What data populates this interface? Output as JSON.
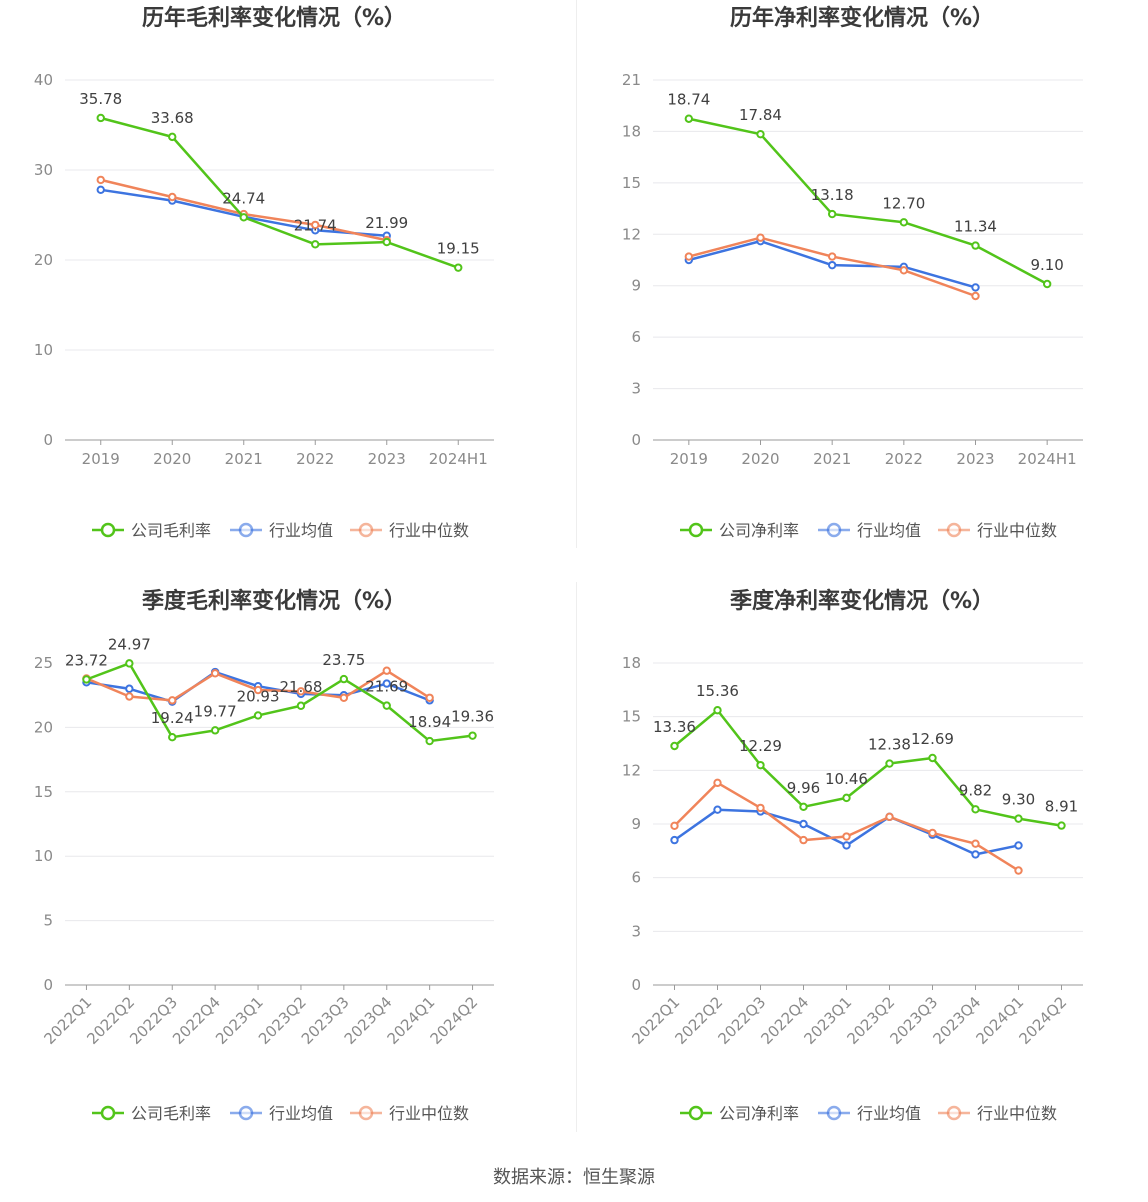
{
  "source_text": "数据来源：恒生聚源",
  "colors": {
    "company": "#52c41a",
    "avg": "#3d74e0",
    "median": "#f0845a",
    "grid": "#e8e8ec",
    "axis": "#9a9a9a"
  },
  "legend_labels": {
    "company_gross": "公司毛利率",
    "company_net": "公司净利率",
    "avg": "行业均值",
    "median": "行业中位数"
  },
  "chart_data": [
    {
      "type": "line",
      "title": "历年毛利率变化情况（%）",
      "categories": [
        "2019",
        "2020",
        "2021",
        "2022",
        "2023",
        "2024H1"
      ],
      "ylim": [
        0,
        40
      ],
      "yticks": [
        0,
        10,
        20,
        30,
        40
      ],
      "rotate_x": false,
      "series": [
        {
          "name": "公司毛利率",
          "key": "company",
          "values": [
            35.78,
            33.68,
            24.74,
            21.74,
            21.99,
            19.15
          ],
          "labels": [
            "35.78",
            "33.68",
            "24.74",
            "21.74",
            "21.99",
            "19.15"
          ]
        },
        {
          "name": "行业均值",
          "key": "avg",
          "values": [
            27.8,
            26.6,
            24.8,
            23.3,
            22.7,
            null
          ]
        },
        {
          "name": "行业中位数",
          "key": "median",
          "values": [
            28.9,
            27.0,
            25.1,
            23.9,
            22.2,
            null
          ]
        }
      ]
    },
    {
      "type": "line",
      "title": "历年净利率变化情况（%）",
      "categories": [
        "2019",
        "2020",
        "2021",
        "2022",
        "2023",
        "2024H1"
      ],
      "ylim": [
        0,
        21
      ],
      "yticks": [
        0,
        3,
        6,
        9,
        12,
        15,
        18,
        21
      ],
      "rotate_x": false,
      "series": [
        {
          "name": "公司净利率",
          "key": "company",
          "values": [
            18.74,
            17.84,
            13.18,
            12.7,
            11.34,
            9.1
          ],
          "labels": [
            "18.74",
            "17.84",
            "13.18",
            "12.70",
            "11.34",
            "9.10"
          ]
        },
        {
          "name": "行业均值",
          "key": "avg",
          "values": [
            10.5,
            11.6,
            10.2,
            10.1,
            8.9,
            null
          ]
        },
        {
          "name": "行业中位数",
          "key": "median",
          "values": [
            10.7,
            11.8,
            10.7,
            9.9,
            8.4,
            null
          ]
        }
      ]
    },
    {
      "type": "line",
      "title": "季度毛利率变化情况（%）",
      "categories": [
        "2022Q1",
        "2022Q2",
        "2022Q3",
        "2022Q4",
        "2023Q1",
        "2023Q2",
        "2023Q3",
        "2023Q4",
        "2024Q1",
        "2024Q2"
      ],
      "ylim": [
        0,
        25
      ],
      "yticks": [
        0,
        5,
        10,
        15,
        20,
        25
      ],
      "rotate_x": true,
      "series": [
        {
          "name": "公司毛利率",
          "key": "company",
          "values": [
            23.72,
            24.97,
            19.24,
            19.77,
            20.93,
            21.68,
            23.75,
            21.69,
            18.94,
            19.36
          ],
          "labels": [
            "23.72",
            "24.97",
            "19.24",
            "19.77",
            "20.93",
            "21.68",
            "23.75",
            "21.69",
            "18.94",
            "19.36"
          ]
        },
        {
          "name": "行业均值",
          "key": "avg",
          "values": [
            23.5,
            23.0,
            22.0,
            24.3,
            23.2,
            22.6,
            22.5,
            23.4,
            22.1,
            null
          ]
        },
        {
          "name": "行业中位数",
          "key": "median",
          "values": [
            23.8,
            22.4,
            22.1,
            24.2,
            22.9,
            22.8,
            22.3,
            24.4,
            22.3,
            null
          ]
        }
      ]
    },
    {
      "type": "line",
      "title": "季度净利率变化情况（%）",
      "categories": [
        "2022Q1",
        "2022Q2",
        "2022Q3",
        "2022Q4",
        "2023Q1",
        "2023Q2",
        "2023Q3",
        "2023Q4",
        "2024Q1",
        "2024Q2"
      ],
      "ylim": [
        0,
        18
      ],
      "yticks": [
        0,
        3,
        6,
        9,
        12,
        15,
        18
      ],
      "rotate_x": true,
      "series": [
        {
          "name": "公司净利率",
          "key": "company",
          "values": [
            13.36,
            15.36,
            12.29,
            9.96,
            10.46,
            12.38,
            12.69,
            9.82,
            9.3,
            8.91
          ],
          "labels": [
            "13.36",
            "15.36",
            "12.29",
            "9.96",
            "10.46",
            "12.38",
            "12.69",
            "9.82",
            "9.30",
            "8.91"
          ]
        },
        {
          "name": "行业均值",
          "key": "avg",
          "values": [
            8.1,
            9.8,
            9.7,
            9.0,
            7.8,
            9.4,
            8.4,
            7.3,
            7.8,
            null
          ]
        },
        {
          "name": "行业中位数",
          "key": "median",
          "values": [
            8.9,
            11.3,
            9.9,
            8.1,
            8.3,
            9.4,
            8.5,
            7.9,
            6.4,
            null
          ]
        }
      ]
    }
  ]
}
